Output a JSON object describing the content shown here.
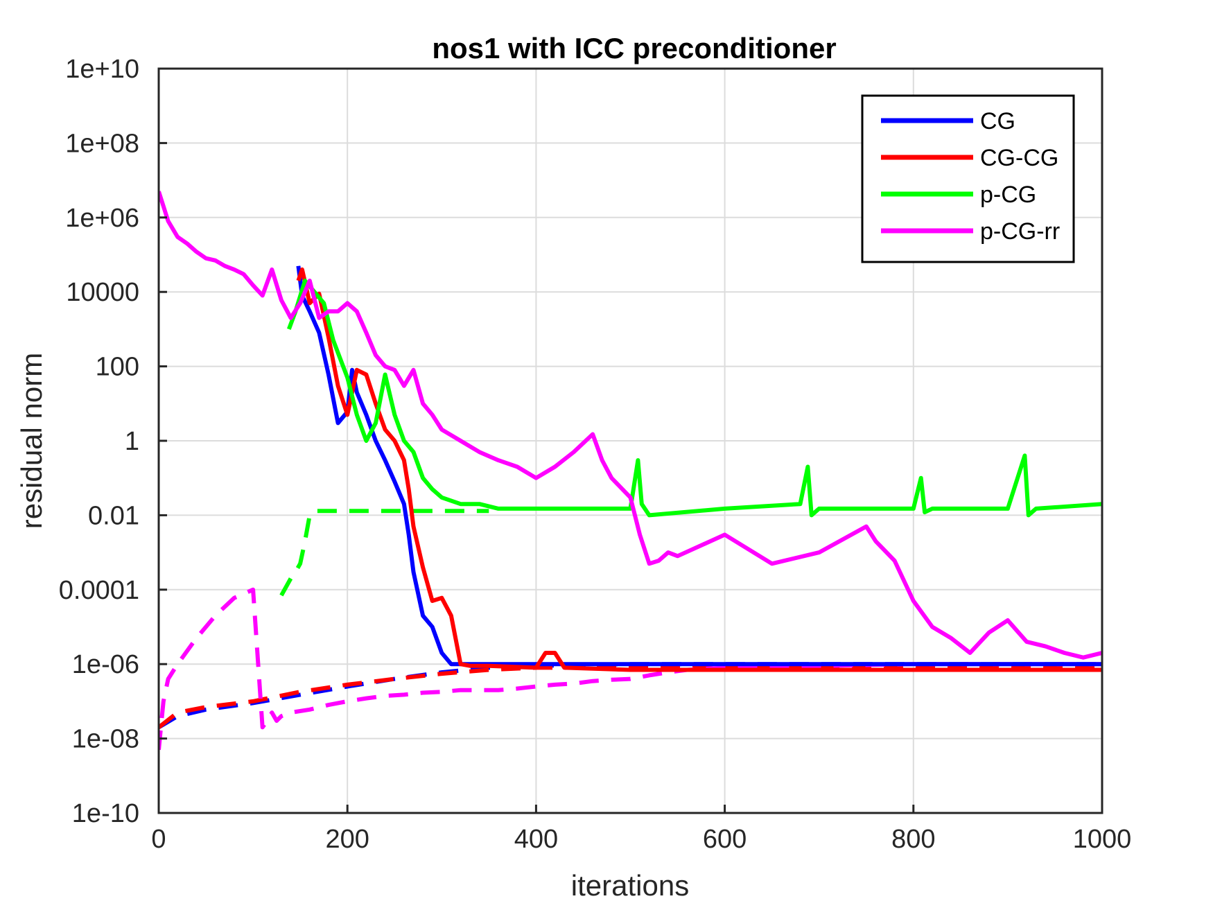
{
  "chart_data": {
    "type": "line",
    "title": "nos1 with ICC preconditioner",
    "xlabel": "iterations",
    "ylabel": "residual norm",
    "xlim": [
      0,
      1000
    ],
    "ylim": [
      1e-10,
      10000000000.0
    ],
    "yscale": "log",
    "grid": true,
    "legend_placement": "top-right",
    "xticks": [
      0,
      200,
      400,
      600,
      800,
      1000
    ],
    "xtick_labels": [
      "0",
      "200",
      "400",
      "600",
      "800",
      "1000"
    ],
    "yticks": [
      10000000000.0,
      100000000.0,
      1000000.0,
      10000.0,
      100.0,
      1,
      0.01,
      0.0001,
      1e-06,
      1e-08,
      1e-10
    ],
    "ytick_labels": [
      "1e+10",
      "1e+08",
      "1e+06",
      "10000",
      "100",
      "1",
      "0.01",
      "0.0001",
      "1e-06",
      "1e-08",
      "1e-10"
    ],
    "series": [
      {
        "name": "CG",
        "color": "#0000ff",
        "style": "solid",
        "x": [
          148,
          152,
          160,
          170,
          180,
          190,
          200,
          205,
          210,
          220,
          230,
          240,
          250,
          260,
          265,
          270,
          280,
          290,
          300,
          310,
          320,
          350,
          400,
          450,
          500,
          600,
          700,
          800,
          900,
          1000
        ],
        "y": [
          50000,
          8000,
          3000,
          800,
          60,
          3,
          6,
          80,
          20,
          5,
          1,
          0.3,
          0.08,
          0.02,
          0.003,
          0.0003,
          2e-05,
          1e-05,
          2e-06,
          1e-06,
          1e-06,
          1e-06,
          1e-06,
          1e-06,
          1e-06,
          1e-06,
          1e-06,
          1e-06,
          1e-06,
          1e-06
        ]
      },
      {
        "name": "CG-CG",
        "color": "#ff0000",
        "style": "solid",
        "x": [
          148,
          152,
          160,
          170,
          180,
          190,
          200,
          210,
          220,
          230,
          240,
          250,
          260,
          265,
          270,
          280,
          290,
          300,
          310,
          320,
          330,
          350,
          400,
          410,
          420,
          430,
          500,
          600,
          700,
          800,
          900,
          1000
        ],
        "y": [
          20000,
          40000,
          5000,
          9000,
          600,
          30,
          5,
          80,
          60,
          10,
          2,
          1,
          0.3,
          0.05,
          0.005,
          0.0004,
          5e-05,
          6e-05,
          2e-05,
          1e-06,
          9e-07,
          9e-07,
          8e-07,
          2e-06,
          2e-06,
          8e-07,
          7e-07,
          7e-07,
          7e-07,
          7e-07,
          7e-07,
          7e-07
        ]
      },
      {
        "name": "p-CG",
        "color": "#00ff00",
        "style": "solid",
        "x": [
          138,
          145,
          155,
          165,
          175,
          185,
          200,
          210,
          220,
          230,
          240,
          250,
          260,
          270,
          280,
          290,
          300,
          320,
          340,
          360,
          400,
          450,
          500,
          508,
          512,
          520,
          600,
          680,
          688,
          692,
          700,
          800,
          808,
          812,
          820,
          900,
          918,
          922,
          930,
          1000
        ],
        "y": [
          1000,
          3000,
          20000,
          10000,
          5000,
          500,
          50,
          5,
          1,
          3,
          60,
          5,
          1,
          0.5,
          0.1,
          0.05,
          0.03,
          0.02,
          0.02,
          0.015,
          0.015,
          0.015,
          0.015,
          0.3,
          0.02,
          0.01,
          0.015,
          0.02,
          0.2,
          0.01,
          0.015,
          0.015,
          0.1,
          0.012,
          0.015,
          0.015,
          0.4,
          0.01,
          0.015,
          0.02
        ]
      },
      {
        "name": "p-CG-rr",
        "color": "#ff00ff",
        "style": "solid",
        "x": [
          0,
          10,
          20,
          30,
          40,
          50,
          60,
          70,
          80,
          90,
          100,
          110,
          120,
          130,
          140,
          150,
          160,
          170,
          180,
          190,
          200,
          210,
          220,
          230,
          240,
          250,
          260,
          270,
          280,
          290,
          300,
          320,
          340,
          360,
          380,
          400,
          420,
          440,
          460,
          470,
          480,
          500,
          510,
          520,
          530,
          540,
          550,
          600,
          650,
          700,
          750,
          760,
          780,
          800,
          820,
          840,
          860,
          880,
          900,
          920,
          940,
          960,
          980,
          1000
        ],
        "y": [
          5000000,
          800000,
          300000,
          200000,
          120000,
          80000,
          70000,
          50000,
          40000,
          30000,
          15000,
          8000,
          40000,
          6000,
          2000,
          5000,
          20000,
          2000,
          3000,
          3000,
          5000,
          3000,
          800,
          200,
          100,
          80,
          30,
          80,
          10,
          5,
          2,
          1,
          0.5,
          0.3,
          0.2,
          0.1,
          0.2,
          0.5,
          1.5,
          0.3,
          0.1,
          0.03,
          0.003,
          0.0005,
          0.0006,
          0.001,
          0.0008,
          0.003,
          0.0005,
          0.001,
          0.005,
          0.002,
          0.0006,
          5e-05,
          1e-05,
          5e-06,
          2e-06,
          7e-06,
          1.5e-05,
          4e-06,
          3e-06,
          2e-06,
          1.5e-06,
          2e-06
        ]
      },
      {
        "name": "",
        "color": "#0000ff",
        "style": "dashed",
        "x": [
          0,
          20,
          50,
          100,
          150,
          200,
          250,
          300,
          350,
          400,
          450,
          500,
          600,
          700,
          800,
          900,
          1000
        ],
        "y": [
          2e-08,
          4e-08,
          6e-08,
          9e-08,
          1.5e-07,
          2.5e-07,
          4e-07,
          6e-07,
          8e-07,
          9e-07,
          9.5e-07,
          1e-06,
          1e-06,
          1e-06,
          1e-06,
          1e-06,
          1e-06
        ]
      },
      {
        "name": "",
        "color": "#ff0000",
        "style": "dashed",
        "x": [
          0,
          20,
          50,
          100,
          150,
          200,
          250,
          300,
          350,
          400,
          500,
          600,
          700,
          800,
          900,
          1000
        ],
        "y": [
          2e-08,
          5e-08,
          7e-08,
          1e-07,
          1.8e-07,
          2.8e-07,
          4e-07,
          5.5e-07,
          7e-07,
          8e-07,
          8e-07,
          8e-07,
          8e-07,
          8e-07,
          8e-07,
          8e-07
        ]
      },
      {
        "name": "",
        "color": "#00ff00",
        "style": "dashed",
        "x": [
          130,
          140,
          145,
          150,
          155,
          160,
          165,
          200,
          250,
          300,
          350
        ],
        "y": [
          7e-05,
          0.0002,
          0.0003,
          0.0005,
          0.002,
          0.01,
          0.013,
          0.013,
          0.013,
          0.013,
          0.013
        ]
      },
      {
        "name": "",
        "color": "#ff00ff",
        "style": "dashed",
        "x": [
          0,
          5,
          10,
          20,
          40,
          60,
          80,
          100,
          110,
          115,
          120,
          125,
          130,
          140,
          160,
          180,
          200,
          220,
          240,
          260,
          280,
          300,
          320,
          340,
          360,
          380,
          400,
          420,
          440,
          460,
          480,
          500,
          520,
          540,
          560,
          600,
          700,
          800,
          900,
          1000
        ],
        "y": [
          5e-09,
          1e-07,
          4e-07,
          1e-06,
          5e-06,
          2e-05,
          6e-05,
          0.0001,
          2e-08,
          3e-08,
          5e-08,
          3e-08,
          4e-08,
          5e-08,
          6e-08,
          8e-08,
          1e-07,
          1.2e-07,
          1.4e-07,
          1.5e-07,
          1.7e-07,
          1.8e-07,
          2e-07,
          2e-07,
          2e-07,
          2.2e-07,
          2.5e-07,
          2.8e-07,
          3e-07,
          3.5e-07,
          3.8e-07,
          4e-07,
          5e-07,
          6e-07,
          7e-07,
          8e-07,
          9e-07,
          1e-06,
          1e-06,
          1e-06
        ]
      }
    ]
  }
}
